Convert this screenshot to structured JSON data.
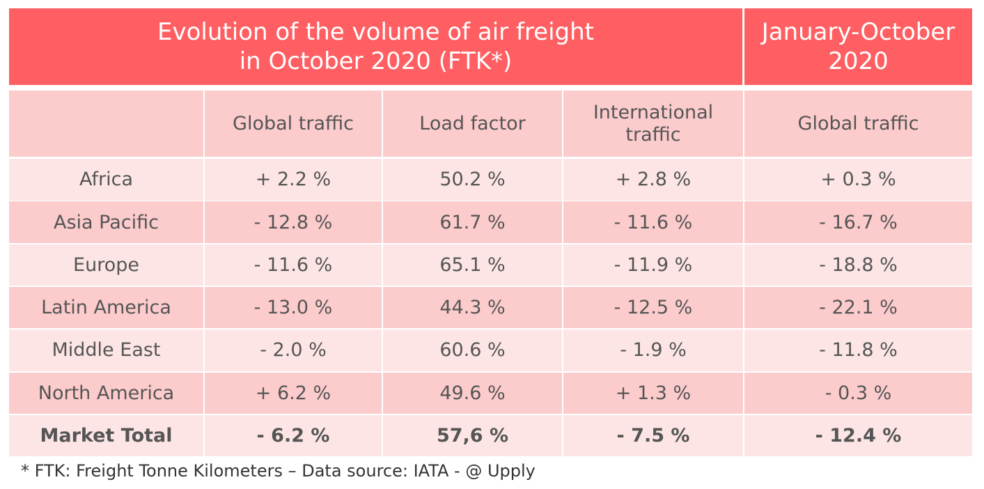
{
  "header": {
    "title_lines": [
      "Evolution of the volume of air freight",
      "in October 2020 (FTK*)"
    ],
    "period_lines": [
      "January-October",
      "2020"
    ]
  },
  "table": {
    "columns": [
      "Global traffic",
      "Load factor",
      "International traffic",
      "Global traffic"
    ],
    "rows": [
      [
        "Africa",
        "+ 2.2 %",
        "50.2 %",
        "+ 2.8 %",
        "+ 0.3 %"
      ],
      [
        "Asia Pacific",
        "- 12.8 %",
        "61.7 %",
        "- 11.6 %",
        "- 16.7 %"
      ],
      [
        "Europe",
        "- 11.6 %",
        "65.1 %",
        "- 11.9 %",
        "- 18.8 %"
      ],
      [
        "Latin America",
        "- 13.0 %",
        "44.3 %",
        "- 12.5 %",
        "- 22.1 %"
      ],
      [
        "Middle East",
        "- 2.0 %",
        "60.6 %",
        "- 1.9 %",
        "- 11.8 %"
      ],
      [
        "North America",
        "+ 6.2 %",
        "49.6 %",
        "+ 1.3 %",
        "- 0.3 %"
      ]
    ],
    "total": [
      "Market Total",
      "- 6.2 %",
      "57,6 %",
      "- 7.5 %",
      "- 12.4 %"
    ]
  },
  "footnote": "* FTK: Freight Tonne Kilometers – Data source: IATA - @ Upply"
}
